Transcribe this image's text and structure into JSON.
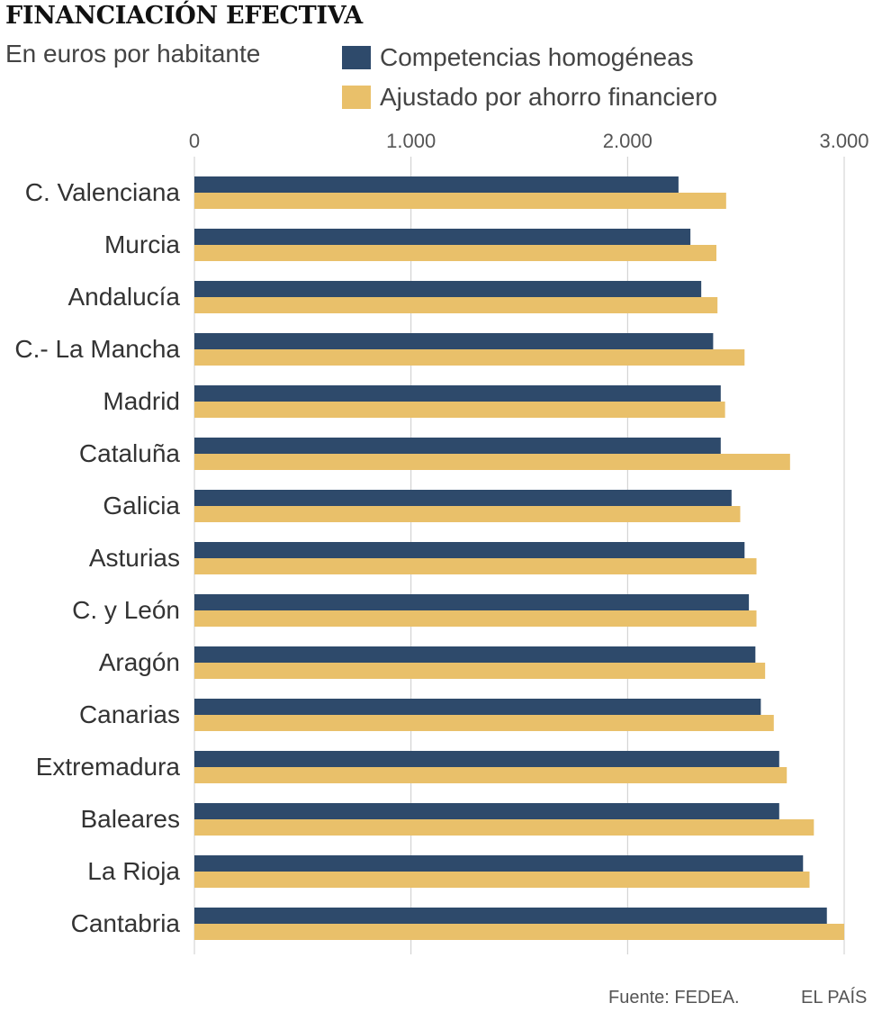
{
  "title": "FINANCIACIÓN EFECTIVA",
  "subtitle": "En euros por habitante",
  "source": "Fuente: FEDEA.",
  "brand": "EL PAÍS",
  "colors": {
    "series1": "#2e4a6b",
    "series2": "#e9c06a",
    "grid": "#cccccc",
    "text": "#333333"
  },
  "chart_data": {
    "type": "bar",
    "orientation": "horizontal",
    "title": "FINANCIACIÓN EFECTIVA",
    "subtitle": "En euros por habitante",
    "xlim": [
      0,
      3000
    ],
    "xticks": [
      0,
      1000,
      2000,
      3000
    ],
    "xtick_labels": [
      "0",
      "1.000",
      "2.000",
      "3.000"
    ],
    "grid": true,
    "legend_position": "top",
    "categories": [
      "C. Valenciana",
      "Murcia",
      "Andalucía",
      "C.- La Mancha",
      "Madrid",
      "Cataluña",
      "Galicia",
      "Asturias",
      "C. y León",
      "Aragón",
      "Canarias",
      "Extremadura",
      "Baleares",
      "La Rioja",
      "Cantabria"
    ],
    "series": [
      {
        "name": "Competencias homogéneas",
        "color": "#2e4a6b",
        "values": [
          2235,
          2290,
          2340,
          2395,
          2430,
          2430,
          2480,
          2540,
          2560,
          2590,
          2615,
          2700,
          2700,
          2810,
          2920
        ]
      },
      {
        "name": "Ajustado por ahorro financiero",
        "color": "#e9c06a",
        "values": [
          2455,
          2410,
          2415,
          2540,
          2450,
          2750,
          2520,
          2595,
          2595,
          2635,
          2675,
          2735,
          2860,
          2840,
          3000
        ]
      }
    ]
  }
}
